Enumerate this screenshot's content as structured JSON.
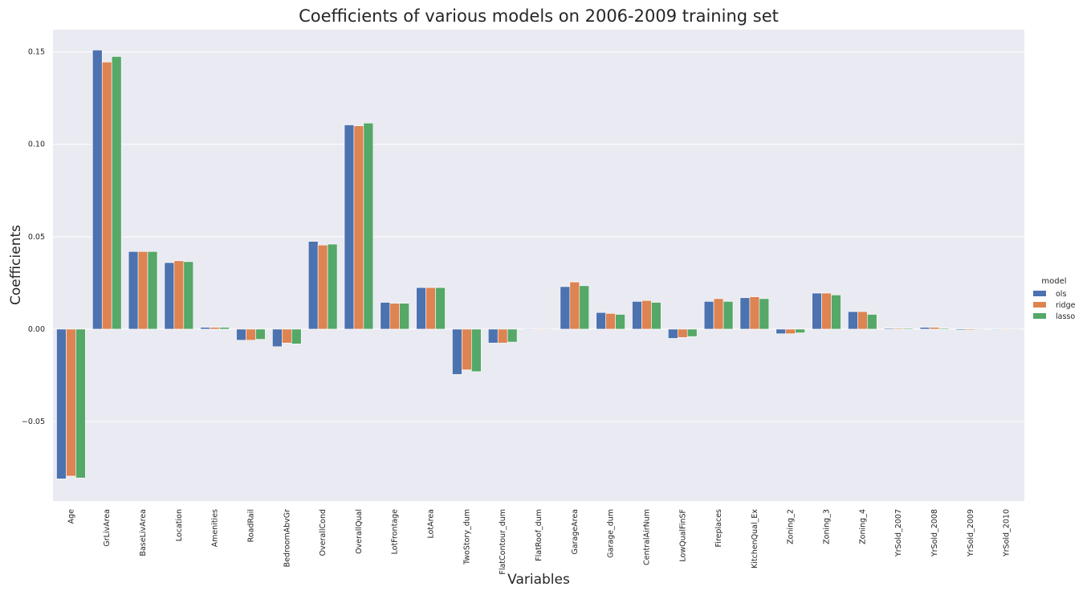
{
  "chart_data": {
    "type": "bar",
    "title": "Coefficients of various models on 2006-2009 training set",
    "xlabel": "Variables",
    "ylabel": "Coefficients",
    "ylim": [
      -0.093,
      0.162
    ],
    "yticks": [
      -0.05,
      0.0,
      0.05,
      0.1,
      0.15
    ],
    "ytick_labels": [
      "−0.05",
      "0.00",
      "0.05",
      "0.10",
      "0.15"
    ],
    "grid": true,
    "legend_title": "model",
    "legend_position": "right",
    "categories": [
      "Age",
      "GrLivArea",
      "BaseLivArea",
      "Location",
      "Amenities",
      "RoadRail",
      "BedroomAbvGr",
      "OverallCond",
      "OverallQual",
      "LotFrontage",
      "LotArea",
      "TwoStory_dum",
      "FlatContour_dum",
      "FlatRoof_dum",
      "GarageArea",
      "Garage_dum",
      "CentralAirNum",
      "LowQualFinSF",
      "Fireplaces",
      "KitchenQual_Ex",
      "Zoning_2",
      "Zoning_3",
      "Zoning_4",
      "YrSold_2007",
      "YrSold_2008",
      "YrSold_2009",
      "YrSold_2010"
    ],
    "series": [
      {
        "name": "ols",
        "color": "#4c72b0",
        "values": [
          -0.081,
          0.151,
          0.042,
          0.036,
          0.001,
          -0.006,
          -0.0095,
          0.0475,
          0.1105,
          0.0145,
          0.0225,
          -0.0245,
          -0.0075,
          0.0,
          0.023,
          0.009,
          0.015,
          -0.005,
          0.015,
          0.017,
          -0.0025,
          0.0195,
          0.0095,
          0.0005,
          0.001,
          -0.0005,
          0.0
        ]
      },
      {
        "name": "ridge",
        "color": "#dd8452",
        "values": [
          -0.0795,
          0.1445,
          0.042,
          0.037,
          0.001,
          -0.006,
          -0.0075,
          0.0455,
          0.11,
          0.014,
          0.0225,
          -0.022,
          -0.0075,
          0.0,
          0.0255,
          0.0085,
          0.0155,
          -0.0045,
          0.0165,
          0.0175,
          -0.0025,
          0.0195,
          0.0095,
          0.0005,
          0.001,
          -0.0005,
          0.0
        ]
      },
      {
        "name": "lasso",
        "color": "#55a868",
        "values": [
          -0.0805,
          0.1475,
          0.042,
          0.0365,
          0.001,
          -0.0055,
          -0.008,
          0.046,
          0.1115,
          0.014,
          0.0225,
          -0.023,
          -0.007,
          0.0,
          0.0235,
          0.008,
          0.0145,
          -0.004,
          0.015,
          0.0165,
          -0.002,
          0.0185,
          0.008,
          0.0005,
          0.0005,
          -0.0003,
          0.0
        ]
      }
    ]
  }
}
